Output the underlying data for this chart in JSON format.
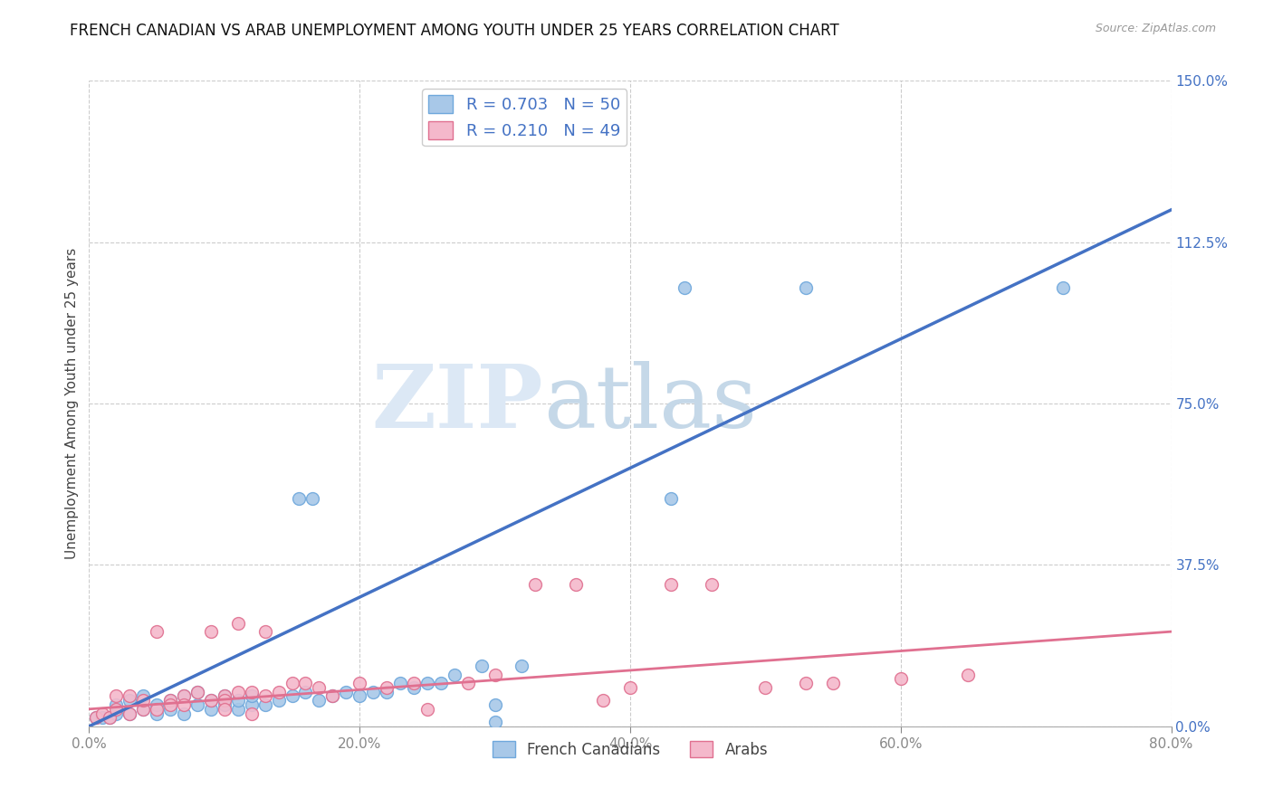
{
  "title": "FRENCH CANADIAN VS ARAB UNEMPLOYMENT AMONG YOUTH UNDER 25 YEARS CORRELATION CHART",
  "source": "Source: ZipAtlas.com",
  "ylabel": "Unemployment Among Youth under 25 years",
  "xlim": [
    0.0,
    0.8
  ],
  "ylim": [
    0.0,
    1.5
  ],
  "xticks": [
    0.0,
    0.2,
    0.4,
    0.6,
    0.8
  ],
  "xticklabels": [
    "0.0%",
    "20.0%",
    "40.0%",
    "60.0%",
    "80.0%"
  ],
  "yticks": [
    0.0,
    0.375,
    0.75,
    1.125,
    1.5
  ],
  "yticklabels": [
    "0.0%",
    "37.5%",
    "75.0%",
    "112.5%",
    "150.0%"
  ],
  "grid_color": "#cccccc",
  "background_color": "#ffffff",
  "french_canadians": {
    "dot_color": "#a8c8e8",
    "edge_color": "#6fa8dc",
    "R": 0.703,
    "N": 50,
    "x": [
      0.005,
      0.01,
      0.015,
      0.02,
      0.02,
      0.03,
      0.03,
      0.04,
      0.04,
      0.05,
      0.05,
      0.06,
      0.06,
      0.07,
      0.07,
      0.08,
      0.08,
      0.09,
      0.09,
      0.1,
      0.1,
      0.11,
      0.11,
      0.12,
      0.12,
      0.13,
      0.14,
      0.15,
      0.16,
      0.17,
      0.18,
      0.19,
      0.2,
      0.21,
      0.22,
      0.23,
      0.24,
      0.25,
      0.26,
      0.27,
      0.29,
      0.3,
      0.32,
      0.155,
      0.165,
      0.43,
      0.44,
      0.53,
      0.72,
      0.3
    ],
    "y": [
      0.02,
      0.02,
      0.02,
      0.03,
      0.05,
      0.03,
      0.06,
      0.04,
      0.07,
      0.03,
      0.05,
      0.04,
      0.06,
      0.03,
      0.07,
      0.05,
      0.08,
      0.04,
      0.06,
      0.05,
      0.07,
      0.04,
      0.06,
      0.05,
      0.07,
      0.05,
      0.06,
      0.07,
      0.08,
      0.06,
      0.07,
      0.08,
      0.07,
      0.08,
      0.08,
      0.1,
      0.09,
      0.1,
      0.1,
      0.12,
      0.14,
      0.05,
      0.14,
      0.53,
      0.53,
      0.53,
      1.02,
      1.02,
      1.02,
      0.01
    ],
    "trend_x": [
      0.0,
      0.8
    ],
    "trend_y": [
      0.0,
      1.2
    ]
  },
  "arabs": {
    "dot_color": "#f4b8cb",
    "edge_color": "#e07090",
    "R": 0.21,
    "N": 49,
    "x": [
      0.005,
      0.01,
      0.015,
      0.02,
      0.02,
      0.03,
      0.03,
      0.04,
      0.04,
      0.05,
      0.05,
      0.06,
      0.06,
      0.07,
      0.07,
      0.08,
      0.09,
      0.09,
      0.1,
      0.1,
      0.11,
      0.11,
      0.12,
      0.13,
      0.13,
      0.14,
      0.15,
      0.16,
      0.17,
      0.18,
      0.2,
      0.22,
      0.24,
      0.28,
      0.3,
      0.33,
      0.36,
      0.4,
      0.43,
      0.46,
      0.5,
      0.53,
      0.55,
      0.6,
      0.65,
      0.1,
      0.12,
      0.25,
      0.38
    ],
    "y": [
      0.02,
      0.03,
      0.02,
      0.04,
      0.07,
      0.03,
      0.07,
      0.04,
      0.06,
      0.22,
      0.04,
      0.06,
      0.05,
      0.07,
      0.05,
      0.08,
      0.06,
      0.22,
      0.07,
      0.06,
      0.08,
      0.24,
      0.08,
      0.07,
      0.22,
      0.08,
      0.1,
      0.1,
      0.09,
      0.07,
      0.1,
      0.09,
      0.1,
      0.1,
      0.12,
      0.33,
      0.33,
      0.09,
      0.33,
      0.33,
      0.09,
      0.1,
      0.1,
      0.11,
      0.12,
      0.04,
      0.03,
      0.04,
      0.06
    ],
    "trend_x": [
      0.0,
      0.8
    ],
    "trend_y": [
      0.04,
      0.22
    ]
  },
  "fc_trend_color": "#4472c4",
  "arab_trend_color": "#e07090",
  "legend_text_color": "#4472c4",
  "ytick_color": "#4472c4",
  "watermark_zip": "ZIP",
  "watermark_atlas": "atlas",
  "watermark_zip_color": "#dce8f5",
  "watermark_atlas_color": "#c8d8e8"
}
